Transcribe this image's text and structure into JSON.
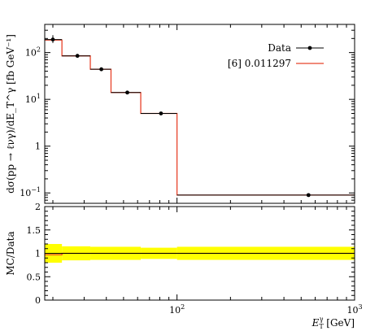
{
  "chart_data": [
    {
      "type": "line",
      "title": "",
      "ylabel": "dσ(pp → ℓνγ)/dE_T^γ [fb GeV⁻¹]",
      "xscale": "log",
      "yscale": "log",
      "xlim": [
        18,
        1000
      ],
      "ylim": [
        0.06,
        400
      ],
      "ytick_labels": [
        "10^{-1}",
        "1",
        "10^{1}",
        "10^{2}"
      ],
      "legend_position": "top-right",
      "series": [
        {
          "name": "Data",
          "style": "points",
          "color": "#000000",
          "points": [
            {
              "x": 20.0,
              "y": 190.0,
              "xlo": 17.5,
              "xhi": 22.5,
              "ylo": 160.0,
              "yhi": 235.0
            },
            {
              "x": 27.5,
              "y": 85.0,
              "xlo": 22.5,
              "xhi": 32.5,
              "ylo": 78.0,
              "yhi": 93.0
            },
            {
              "x": 37.5,
              "y": 44.0,
              "xlo": 32.5,
              "xhi": 42.5,
              "ylo": 40.0,
              "yhi": 48.0
            },
            {
              "x": 52.5,
              "y": 14.0,
              "xlo": 42.5,
              "xhi": 62.5,
              "ylo": 13.0,
              "yhi": 15.0
            },
            {
              "x": 81.25,
              "y": 5.0,
              "xlo": 62.5,
              "xhi": 100.0,
              "ylo": 4.6,
              "yhi": 5.4
            },
            {
              "x": 550.0,
              "y": 0.09,
              "xlo": 100.0,
              "xhi": 1000.0,
              "ylo": 0.083,
              "yhi": 0.097
            }
          ]
        },
        {
          "name": "[6] 0.011297",
          "style": "step",
          "color": "#e8432a",
          "bins": [
            {
              "xlo": 17.5,
              "xhi": 22.5,
              "y": 185.0
            },
            {
              "xlo": 22.5,
              "xhi": 32.5,
              "y": 85.0
            },
            {
              "xlo": 32.5,
              "xhi": 42.5,
              "y": 44.0
            },
            {
              "xlo": 42.5,
              "xhi": 62.5,
              "y": 14.0
            },
            {
              "xlo": 62.5,
              "xhi": 100.0,
              "y": 5.0
            },
            {
              "xlo": 100.0,
              "xhi": 1000.0,
              "y": 0.09
            }
          ]
        }
      ]
    },
    {
      "type": "line",
      "ylabel": "MC/Data",
      "xlabel": "E_T^γ [GeV]",
      "xscale": "log",
      "xlim": [
        18,
        1000
      ],
      "ylim": [
        0,
        2
      ],
      "yticks": [
        0,
        0.5,
        1,
        1.5,
        2
      ],
      "ytick_labels": [
        "0",
        "0.5",
        "1",
        "1.5",
        "2"
      ],
      "xtick_labels": [
        "10^{2}",
        "10^{3}"
      ],
      "band_color": "#ffff00",
      "bins": [
        {
          "xlo": 17.5,
          "xhi": 22.5,
          "ratio": 0.97,
          "band": 0.2
        },
        {
          "xlo": 22.5,
          "xhi": 32.5,
          "ratio": 1.0,
          "band": 0.15
        },
        {
          "xlo": 32.5,
          "xhi": 42.5,
          "ratio": 1.0,
          "band": 0.14
        },
        {
          "xlo": 42.5,
          "xhi": 62.5,
          "ratio": 1.0,
          "band": 0.14
        },
        {
          "xlo": 62.5,
          "xhi": 100.0,
          "ratio": 1.0,
          "band": 0.12
        },
        {
          "xlo": 100.0,
          "xhi": 1000.0,
          "ratio": 1.0,
          "band": 0.14
        }
      ]
    }
  ]
}
